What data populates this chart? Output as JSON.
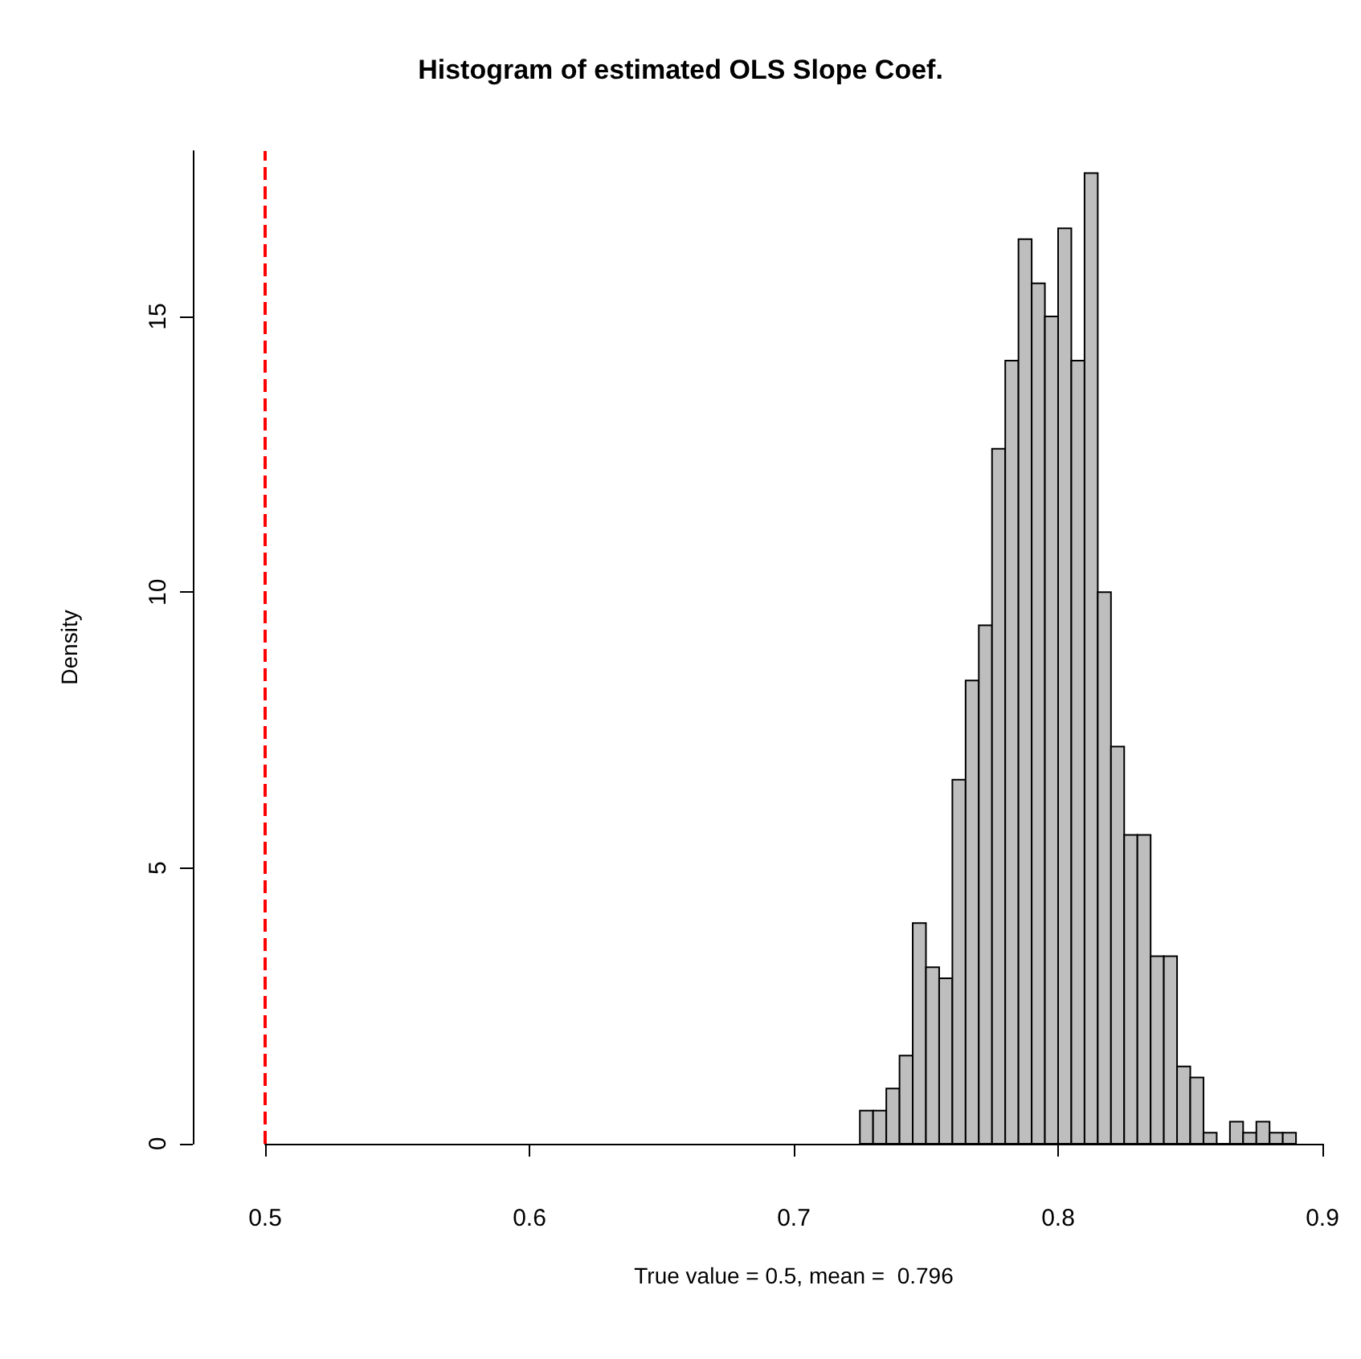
{
  "chart_data": {
    "type": "histogram",
    "title": "Histogram of estimated OLS Slope Coef.",
    "xlabel": "True value = 0.5, mean =  0.796",
    "ylabel": "Density",
    "bins": [
      0.725,
      0.73,
      0.735,
      0.74,
      0.745,
      0.75,
      0.755,
      0.76,
      0.765,
      0.77,
      0.775,
      0.78,
      0.785,
      0.79,
      0.795,
      0.8,
      0.805,
      0.81,
      0.815,
      0.82,
      0.825,
      0.83,
      0.835,
      0.84,
      0.845,
      0.85,
      0.855,
      0.86,
      0.865,
      0.87,
      0.875,
      0.88,
      0.885,
      0.89
    ],
    "values": [
      0.6,
      0.6,
      1.0,
      1.6,
      4.0,
      3.2,
      3.0,
      6.6,
      8.4,
      9.4,
      12.6,
      14.2,
      16.4,
      15.6,
      15.0,
      16.6,
      14.2,
      17.6,
      10.0,
      7.2,
      5.6,
      5.6,
      3.4,
      3.4,
      1.4,
      1.2,
      0.2,
      0,
      0.4,
      0.2,
      0.4,
      0.2,
      0.2
    ],
    "color": "#bebebe",
    "xlim": [
      0.5,
      0.9
    ],
    "xticks": [
      0.5,
      0.6,
      0.7,
      0.8,
      0.9
    ],
    "ylim": [
      0,
      18
    ],
    "yticks": [
      0,
      5,
      10,
      15
    ],
    "grid": false,
    "ref_lines": [
      {
        "axis": "x",
        "value": 0.5,
        "color": "#ff0000",
        "line_style": "dashed"
      }
    ]
  }
}
